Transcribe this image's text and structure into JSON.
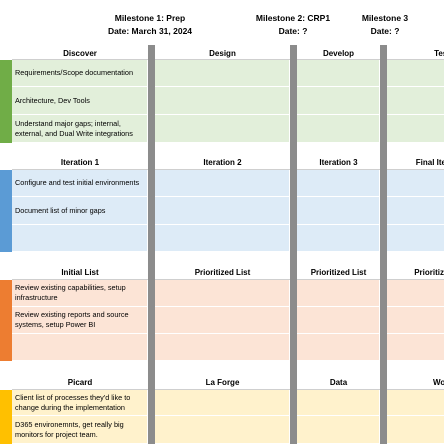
{
  "milestones": [
    {
      "title": "Milestone 1: Prep",
      "date": "Date: March 31, 2024"
    },
    {
      "title": "Milestone 2: CRP1",
      "date": "Date: ?"
    },
    {
      "title": "Milestone 3",
      "date": "Date: ?"
    }
  ],
  "sections": [
    {
      "headers": [
        "Discover",
        "Design",
        "Develop",
        "Test"
      ],
      "rows": [
        "Requirements/Scope documentation",
        "Architecture, Dev Tools",
        "Understand major gaps; internal, external, and Dual Write integrations"
      ]
    },
    {
      "headers": [
        "Iteration 1",
        "Iteration 2",
        "Iteration 3",
        "Final Iteration"
      ],
      "rows": [
        "Configure and test initial environments",
        "Document list of minor gaps"
      ]
    },
    {
      "headers": [
        "Initial List",
        "Prioritized List",
        "Prioritized List",
        "Prioritized List"
      ],
      "rows": [
        "Review existing capabilities, setup infrastructure",
        "Review existing reports and source systems, setup Power BI"
      ]
    },
    {
      "headers": [
        "Picard",
        "La Forge",
        "Data",
        "Worf"
      ],
      "rows": [
        "Client list of processes they'd like to change during the implementation",
        "D365 environemnts, get really big monitors for project team."
      ]
    }
  ]
}
